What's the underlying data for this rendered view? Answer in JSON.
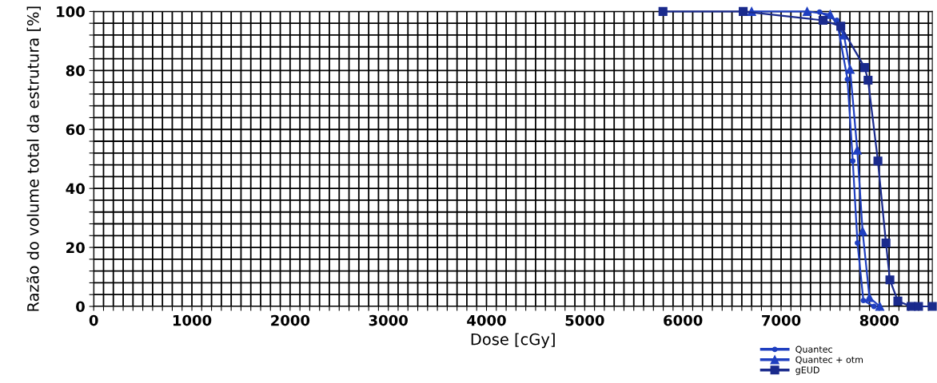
{
  "chart_data": {
    "type": "line",
    "xlabel": "Dose [cGy]",
    "ylabel": "Razão do volume total da estrutura [%]",
    "xlim": [
      0,
      8540
    ],
    "ylim": [
      0,
      100
    ],
    "grid": true,
    "legend": "bottom right",
    "line_style": "solid",
    "xticks": [
      0,
      {
        "value": 100,
        "label": null
      },
      {
        "value": 200,
        "label": null
      },
      {
        "value": 300,
        "label": null
      },
      {
        "value": 400,
        "label": null
      },
      {
        "value": 500,
        "label": null
      },
      {
        "value": 600,
        "label": null
      },
      {
        "value": 700,
        "label": null
      },
      {
        "value": 800,
        "label": null
      },
      {
        "value": 900,
        "label": null
      },
      1000,
      {
        "value": 1100,
        "label": null
      },
      {
        "value": 1200,
        "label": null
      },
      {
        "value": 1300,
        "label": null
      },
      {
        "value": 1400,
        "label": null
      },
      {
        "value": 1500,
        "label": null
      },
      {
        "value": 1600,
        "label": null
      },
      {
        "value": 1700,
        "label": null
      },
      {
        "value": 1800,
        "label": null
      },
      {
        "value": 1900,
        "label": null
      },
      2000,
      {
        "value": 2100,
        "label": null
      },
      {
        "value": 2200,
        "label": null
      },
      {
        "value": 2300,
        "label": null
      },
      {
        "value": 2400,
        "label": null
      },
      {
        "value": 2500,
        "label": null
      },
      {
        "value": 2600,
        "label": null
      },
      {
        "value": 2700,
        "label": null
      },
      {
        "value": 2800,
        "label": null
      },
      {
        "value": 2900,
        "label": null
      },
      3000,
      {
        "value": 3100,
        "label": null
      },
      {
        "value": 3200,
        "label": null
      },
      {
        "value": 3300,
        "label": null
      },
      {
        "value": 3400,
        "label": null
      },
      {
        "value": 3500,
        "label": null
      },
      {
        "value": 3600,
        "label": null
      },
      {
        "value": 3700,
        "label": null
      },
      {
        "value": 3800,
        "label": null
      },
      {
        "value": 3900,
        "label": null
      },
      4000,
      {
        "value": 4100,
        "label": null
      },
      {
        "value": 4200,
        "label": null
      },
      {
        "value": 4300,
        "label": null
      },
      {
        "value": 4400,
        "label": null
      },
      {
        "value": 4500,
        "label": null
      },
      {
        "value": 4600,
        "label": null
      },
      {
        "value": 4700,
        "label": null
      },
      {
        "value": 4800,
        "label": null
      },
      {
        "value": 4900,
        "label": null
      },
      5000,
      {
        "value": 5100,
        "label": null
      },
      {
        "value": 5200,
        "label": null
      },
      {
        "value": 5300,
        "label": null
      },
      {
        "value": 5400,
        "label": null
      },
      {
        "value": 5500,
        "label": null
      },
      {
        "value": 5600,
        "label": null
      },
      {
        "value": 5700,
        "label": null
      },
      {
        "value": 5800,
        "label": null
      },
      {
        "value": 5900,
        "label": null
      },
      6000,
      {
        "value": 6100,
        "label": null
      },
      {
        "value": 6200,
        "label": null
      },
      {
        "value": 6300,
        "label": null
      },
      {
        "value": 6400,
        "label": null
      },
      {
        "value": 6500,
        "label": null
      },
      {
        "value": 6600,
        "label": null
      },
      {
        "value": 6700,
        "label": null
      },
      {
        "value": 6800,
        "label": null
      },
      {
        "value": 6900,
        "label": null
      },
      7000,
      {
        "value": 7100,
        "label": null
      },
      {
        "value": 7200,
        "label": null
      },
      {
        "value": 7300,
        "label": null
      },
      {
        "value": 7400,
        "label": null
      },
      {
        "value": 7500,
        "label": null
      },
      {
        "value": 7600,
        "label": null
      },
      {
        "value": 7700,
        "label": null
      },
      {
        "value": 7800,
        "label": null
      },
      {
        "value": 7900,
        "label": null
      },
      8000,
      {
        "value": 8100,
        "label": null
      },
      {
        "value": 8200,
        "label": null
      },
      {
        "value": 8300,
        "label": null
      },
      {
        "value": 8400,
        "label": null
      },
      {
        "value": 8500,
        "label": null
      }
    ],
    "yticks": [
      0,
      {
        "value": 4,
        "label": null
      },
      {
        "value": 8,
        "label": null
      },
      {
        "value": 12,
        "label": null
      },
      {
        "value": 16,
        "label": null
      },
      20,
      {
        "value": 24,
        "label": null
      },
      {
        "value": 28,
        "label": null
      },
      {
        "value": 32,
        "label": null
      },
      {
        "value": 36,
        "label": null
      },
      40,
      {
        "value": 44,
        "label": null
      },
      {
        "value": 48,
        "label": null
      },
      {
        "value": 52,
        "label": null
      },
      {
        "value": 56,
        "label": null
      },
      60,
      {
        "value": 64,
        "label": null
      },
      {
        "value": 68,
        "label": null
      },
      {
        "value": 72,
        "label": null
      },
      {
        "value": 76,
        "label": null
      },
      80,
      {
        "value": 84,
        "label": null
      },
      {
        "value": 88,
        "label": null
      },
      {
        "value": 92,
        "label": null
      },
      {
        "value": 96,
        "label": null
      },
      100
    ],
    "series": [
      {
        "name": "Quantec",
        "color": "#1f3fc0",
        "marker": "circle",
        "x": [
          7392,
          7568,
          7676,
          7730,
          7778,
          7838,
          7946
        ],
        "values": [
          99.8,
          97,
          77,
          49.3,
          21.5,
          2,
          0
        ]
      },
      {
        "name": "Quantec + otm",
        "color": "#1f3fc0",
        "marker": "triangle",
        "x": [
          6700,
          7265,
          7500,
          7640,
          7703,
          7776,
          7830,
          7900,
          8005
        ],
        "values": [
          100,
          100,
          99,
          92,
          80.4,
          53,
          25.5,
          3,
          0
        ]
      },
      {
        "name": "gEUD",
        "color": "#1a2a8c",
        "marker": "square",
        "x": [
          5797,
          6614,
          7427,
          7608,
          7851,
          7886,
          7986,
          8068,
          8108,
          8189,
          8324,
          8400,
          8540
        ],
        "values": [
          100,
          100,
          97,
          95,
          81,
          76.7,
          49.3,
          21.5,
          9,
          1.8,
          0,
          0,
          0
        ]
      }
    ]
  }
}
